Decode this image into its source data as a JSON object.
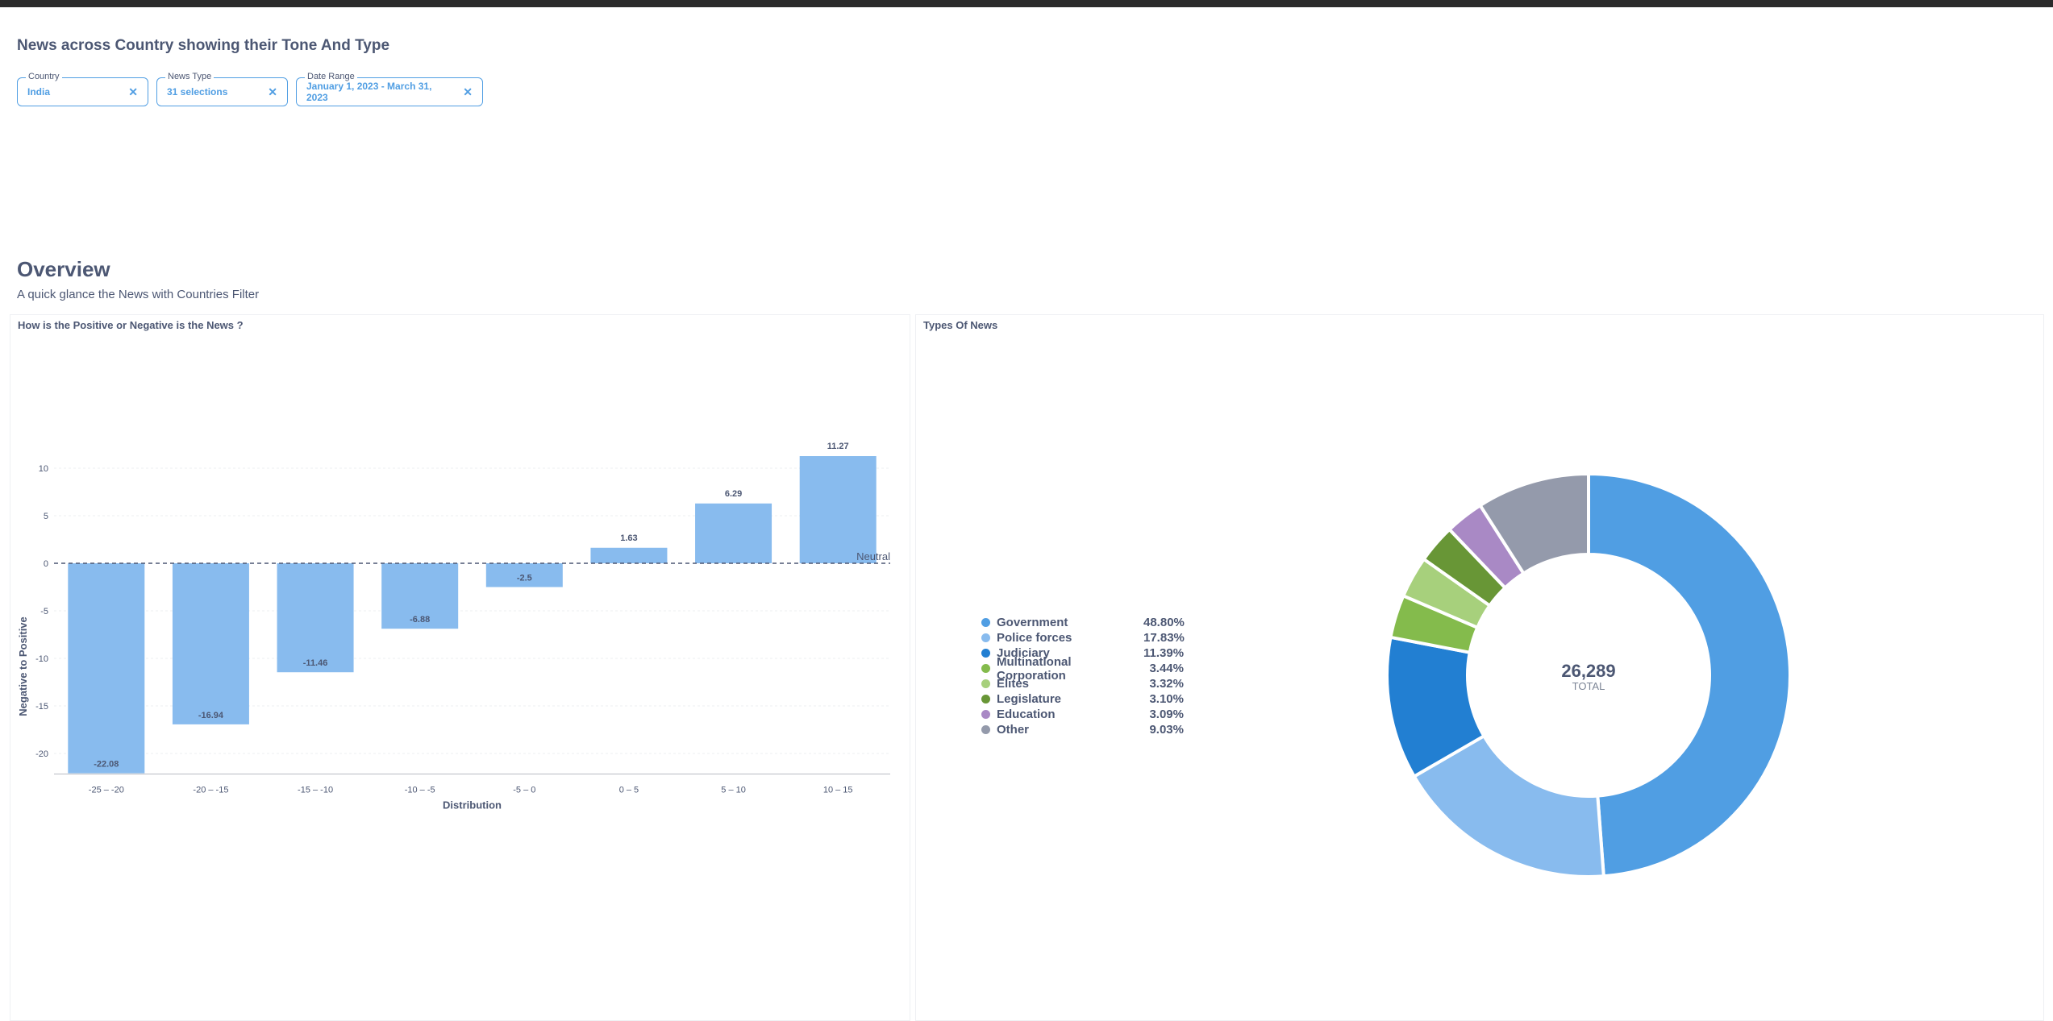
{
  "dashboard": {
    "title": "News across Country showing their Tone And Type"
  },
  "filters": [
    {
      "label": "Country",
      "value": "India"
    },
    {
      "label": "News Type",
      "value": "31 selections"
    },
    {
      "label": "Date Range",
      "value": "January 1, 2023 - March 31, 2023"
    }
  ],
  "section": {
    "title": "Overview",
    "subtitle": "A quick glance the News with Countries Filter"
  },
  "bar_card": {
    "title": "How is the Positive or Negative is the News ?"
  },
  "pie_card": {
    "title": "Types Of News"
  },
  "colors": {
    "accent": "#509ee3",
    "bar": "#88bbee"
  },
  "chart_data": [
    {
      "type": "bar",
      "categories": [
        "-25 – -20",
        "-20 – -15",
        "-15 – -10",
        "-10 – -5",
        "-5 – 0",
        "0 – 5",
        "5 – 10",
        "10 – 15"
      ],
      "values": [
        -22.08,
        -16.94,
        -11.46,
        -6.88,
        -2.5,
        1.63,
        6.29,
        11.27
      ],
      "data_labels": [
        "-22.08",
        "-16.94",
        "-11.46",
        "-6.88",
        "-2.5",
        "1.63",
        "6.29",
        "11.27"
      ],
      "xlabel": "Distribution",
      "ylabel": "Negative to Positive",
      "yticks": [
        10,
        5,
        0,
        -5,
        -10,
        -15,
        -20
      ],
      "ylim": [
        -22.08,
        11.27
      ],
      "goal_line": {
        "value": 0,
        "label": "Neutral"
      },
      "grid": true,
      "color": "#88bbee"
    },
    {
      "type": "pie",
      "center": {
        "value": "26,289",
        "label": "TOTAL"
      },
      "legend_position": "left",
      "slices": [
        {
          "name": "Government",
          "percent": 48.8,
          "label": "48.80%",
          "color": "#509ee3"
        },
        {
          "name": "Police forces",
          "percent": 17.83,
          "label": "17.83%",
          "color": "#88bbee"
        },
        {
          "name": "Judiciary",
          "percent": 11.39,
          "label": "11.39%",
          "color": "#227fd2"
        },
        {
          "name": "Multinational Corporation",
          "percent": 3.44,
          "label": "3.44%",
          "color": "#84bb4c"
        },
        {
          "name": "Elites",
          "percent": 3.32,
          "label": "3.32%",
          "color": "#a7d07c"
        },
        {
          "name": "Legislature",
          "percent": 3.1,
          "label": "3.10%",
          "color": "#689636"
        },
        {
          "name": "Education",
          "percent": 3.09,
          "label": "3.09%",
          "color": "#a989c5"
        },
        {
          "name": "Other",
          "percent": 9.03,
          "label": "9.03%",
          "color": "#949aab"
        }
      ]
    }
  ]
}
